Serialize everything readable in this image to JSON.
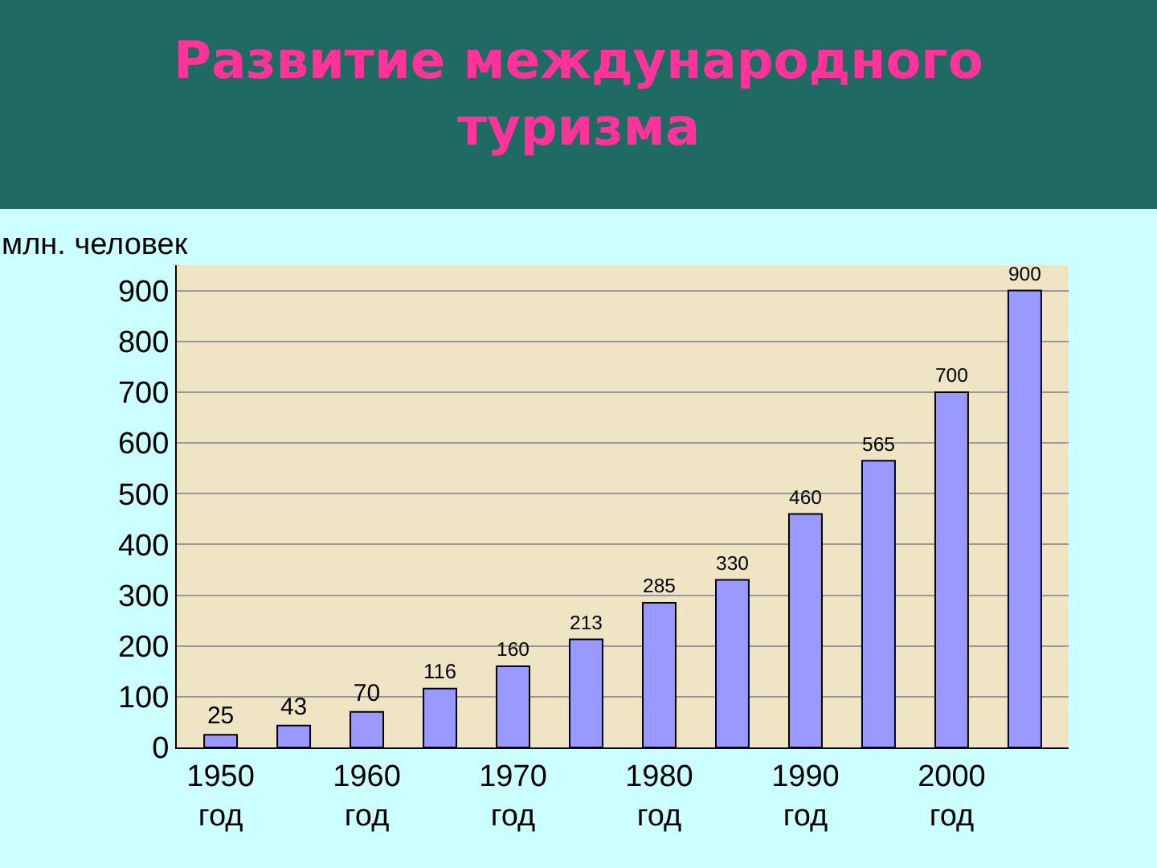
{
  "chart_data": {
    "type": "bar",
    "title": "Развитие международного\nтуризма",
    "ylabel": "млн. человек",
    "categories": [
      "1950\nгод",
      null,
      "1960\nгод",
      null,
      "1970\nгод",
      null,
      "1980\nгод",
      null,
      "1990\nгод",
      null,
      "2000\nгод",
      null
    ],
    "values": [
      25,
      43,
      70,
      116,
      160,
      213,
      285,
      330,
      460,
      565,
      700,
      900
    ],
    "color": "#9999ff",
    "data_labels": true,
    "ylim": [
      0,
      950
    ],
    "yticks": [
      0,
      100,
      200,
      300,
      400,
      500,
      600,
      700,
      800,
      900
    ],
    "grid": "y"
  }
}
